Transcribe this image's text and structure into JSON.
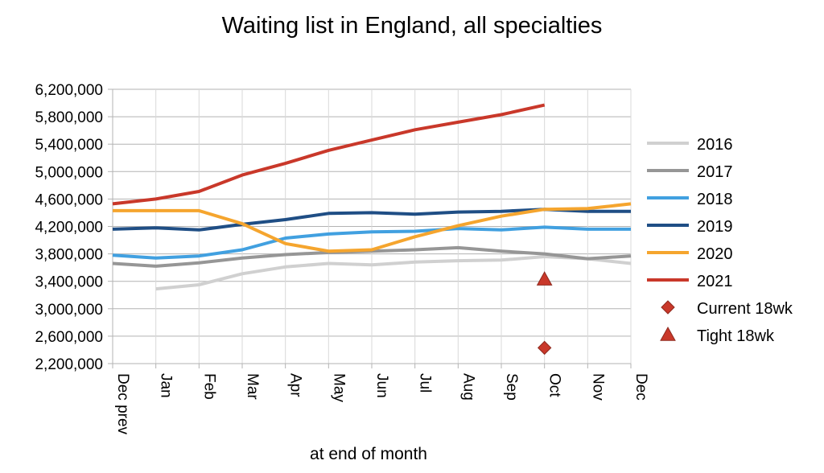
{
  "chart_data": {
    "type": "line",
    "title": "Waiting list in England, all specialties",
    "xlabel": "at end of month",
    "ylabel": "",
    "categories": [
      "Dec prev",
      "Jan",
      "Feb",
      "Mar",
      "Apr",
      "May",
      "Jun",
      "Jul",
      "Aug",
      "Sep",
      "Oct",
      "Nov",
      "Dec"
    ],
    "yticks": [
      "2,200,000",
      "2,600,000",
      "3,000,000",
      "3,400,000",
      "3,800,000",
      "4,200,000",
      "4,600,000",
      "5,000,000",
      "5,400,000",
      "5,800,000",
      "6,200,000"
    ],
    "ylim": [
      2200000,
      6200000
    ],
    "grid": "horizontal",
    "legend_position": "right",
    "series": [
      {
        "name": "2016",
        "color": "#d0d0d0",
        "values": [
          null,
          3290000,
          3350000,
          3510000,
          3610000,
          3660000,
          3640000,
          3680000,
          3700000,
          3710000,
          3760000,
          3730000,
          3660000
        ]
      },
      {
        "name": "2017",
        "color": "#969696",
        "values": [
          3660000,
          3620000,
          3670000,
          3740000,
          3790000,
          3820000,
          3840000,
          3860000,
          3890000,
          3840000,
          3800000,
          3730000,
          3770000
        ]
      },
      {
        "name": "2018",
        "color": "#41a0e0",
        "values": [
          3780000,
          3740000,
          3770000,
          3860000,
          4030000,
          4090000,
          4120000,
          4130000,
          4170000,
          4150000,
          4190000,
          4160000,
          4160000
        ]
      },
      {
        "name": "2019",
        "color": "#1f4e85",
        "values": [
          4160000,
          4180000,
          4150000,
          4230000,
          4300000,
          4390000,
          4400000,
          4380000,
          4410000,
          4420000,
          4450000,
          4420000,
          4420000
        ]
      },
      {
        "name": "2020",
        "color": "#f5a52e",
        "values": [
          4430000,
          4430000,
          4430000,
          4240000,
          3950000,
          3840000,
          3860000,
          4050000,
          4210000,
          4350000,
          4450000,
          4460000,
          4530000
        ]
      },
      {
        "name": "2021",
        "color": "#c9382a",
        "values": [
          4530000,
          4600000,
          4710000,
          4950000,
          5120000,
          5310000,
          5460000,
          5610000,
          5720000,
          5830000,
          5970000,
          null,
          null
        ]
      }
    ],
    "markers": [
      {
        "name": "Current 18wk",
        "shape": "diamond",
        "color": "#c9382a",
        "category": "Oct",
        "value": 2430000
      },
      {
        "name": "Tight 18wk",
        "shape": "triangle",
        "color": "#c9382a",
        "category": "Oct",
        "value": 3430000
      }
    ]
  }
}
